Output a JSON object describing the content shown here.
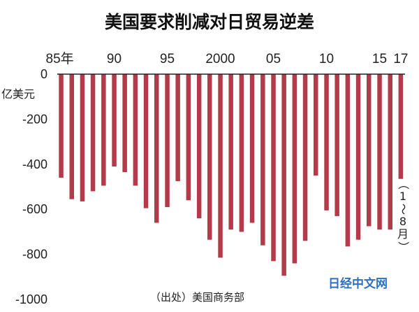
{
  "chart_data": {
    "type": "bar",
    "title": "美国要求削减对日贸易逆差",
    "unit_label": "亿美元",
    "source": "（出处）美国商务部",
    "watermark": "日经中文网",
    "last_period_note": "（1～8月）",
    "ylim": [
      -1000,
      0
    ],
    "yticks": [
      0,
      -200,
      -400,
      -600,
      -800,
      -1000
    ],
    "x_tick_labels": [
      {
        "year": 1985,
        "label": "85年"
      },
      {
        "year": 1990,
        "label": "90"
      },
      {
        "year": 1995,
        "label": "95"
      },
      {
        "year": 2000,
        "label": "2000"
      },
      {
        "year": 2005,
        "label": "05"
      },
      {
        "year": 2010,
        "label": "10"
      },
      {
        "year": 2015,
        "label": "15"
      },
      {
        "year": 2017,
        "label": "17"
      }
    ],
    "categories": [
      1985,
      1986,
      1987,
      1988,
      1989,
      1990,
      1991,
      1992,
      1993,
      1994,
      1995,
      1996,
      1997,
      1998,
      1999,
      2000,
      2001,
      2002,
      2003,
      2004,
      2005,
      2006,
      2007,
      2008,
      2009,
      2010,
      2011,
      2012,
      2013,
      2014,
      2015,
      2016,
      2017
    ],
    "values": [
      -460,
      -555,
      -565,
      -520,
      -495,
      -410,
      -435,
      -495,
      -595,
      -660,
      -590,
      -475,
      -560,
      -640,
      -735,
      -815,
      -690,
      -700,
      -660,
      -760,
      -830,
      -895,
      -840,
      -740,
      -450,
      -605,
      -630,
      -765,
      -735,
      -675,
      -690,
      -690,
      -465
    ],
    "bar_color": "#b33a4a",
    "grid": false
  }
}
